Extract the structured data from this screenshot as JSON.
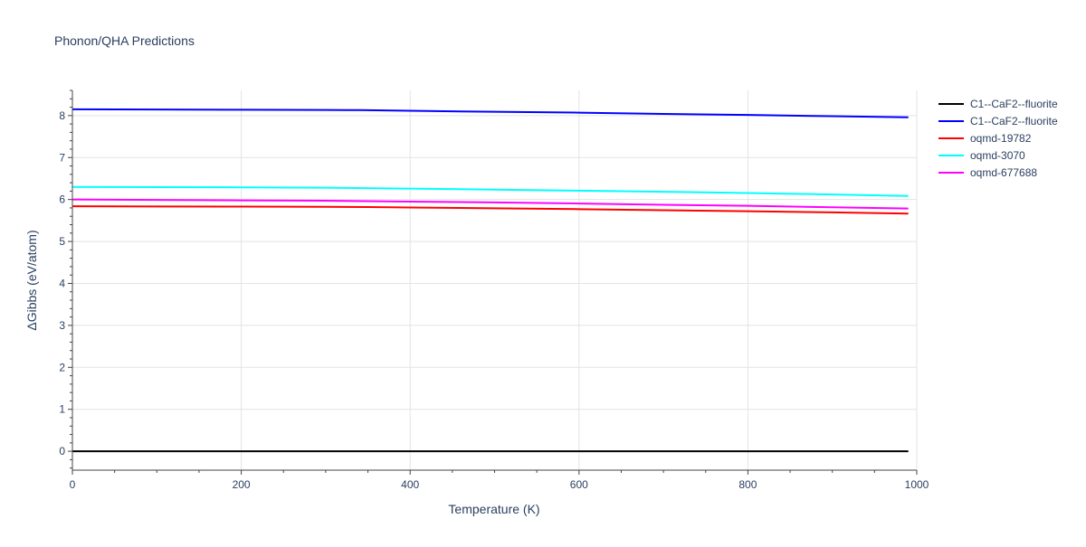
{
  "chart_data": {
    "type": "line",
    "title": "Phonon/QHA Predictions",
    "xlabel": "Temperature (K)",
    "ylabel": "ΔGibbs (eV/atom)",
    "xlim": [
      0,
      1000
    ],
    "ylim": [
      -0.45,
      8.6
    ],
    "xticks": [
      0,
      200,
      400,
      600,
      800,
      1000
    ],
    "yticks": [
      0,
      1,
      2,
      3,
      4,
      5,
      6,
      7,
      8
    ],
    "grid": true,
    "legend_position": "top-right outside",
    "series": [
      {
        "name": "C1--CaF2--fluorite",
        "color": "#000000",
        "x": [
          0,
          100,
          200,
          300,
          400,
          500,
          600,
          700,
          800,
          900,
          990
        ],
        "y": [
          0,
          0,
          0,
          0,
          0,
          0,
          0,
          0,
          0,
          0,
          0
        ]
      },
      {
        "name": "C1--CaF2--fluorite",
        "color": "#0000ff",
        "x": [
          0,
          100,
          200,
          300,
          340,
          400,
          500,
          600,
          700,
          800,
          900,
          990
        ],
        "y": [
          8.15,
          8.145,
          8.14,
          8.135,
          8.13,
          8.115,
          8.09,
          8.07,
          8.04,
          8.015,
          7.985,
          7.96
        ]
      },
      {
        "name": "oqmd-19782",
        "color": "#ff0000",
        "x": [
          0,
          100,
          200,
          300,
          350,
          400,
          500,
          600,
          700,
          800,
          900,
          990
        ],
        "y": [
          5.84,
          5.835,
          5.83,
          5.825,
          5.82,
          5.81,
          5.79,
          5.77,
          5.745,
          5.72,
          5.695,
          5.665
        ]
      },
      {
        "name": "oqmd-3070",
        "color": "#00ffff",
        "x": [
          0,
          100,
          200,
          300,
          400,
          500,
          600,
          700,
          800,
          900,
          990
        ],
        "y": [
          6.3,
          6.295,
          6.29,
          6.28,
          6.26,
          6.235,
          6.21,
          6.185,
          6.155,
          6.12,
          6.085
        ]
      },
      {
        "name": "oqmd-677688",
        "color": "#ff00ff",
        "x": [
          0,
          100,
          200,
          300,
          400,
          500,
          600,
          700,
          800,
          900,
          990
        ],
        "y": [
          6.0,
          5.99,
          5.98,
          5.97,
          5.95,
          5.93,
          5.905,
          5.875,
          5.85,
          5.815,
          5.785
        ]
      }
    ]
  }
}
